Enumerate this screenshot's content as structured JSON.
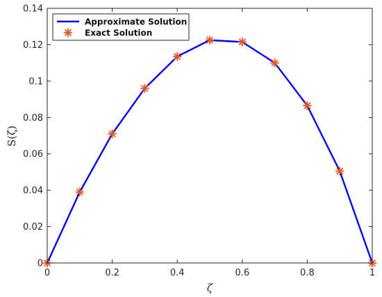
{
  "chart_data": {
    "type": "line",
    "title": "",
    "xlabel": "ζ",
    "ylabel": "S(ζ)",
    "xlim": [
      0,
      1
    ],
    "ylim": [
      0,
      0.14
    ],
    "xticks": [
      "0",
      "0.2",
      "0.4",
      "0.6",
      "0.8",
      "1"
    ],
    "yticks": [
      "0",
      "0.02",
      "0.04",
      "0.06",
      "0.08",
      "0.1",
      "0.12",
      "0.14"
    ],
    "grid": false,
    "legend_position": "top-left",
    "series": [
      {
        "name": "Approximate Solution",
        "style": "line",
        "color": "#0000ff",
        "x": [
          0,
          0.1,
          0.2,
          0.3,
          0.4,
          0.5,
          0.6,
          0.7,
          0.8,
          0.9,
          1.0
        ],
        "y": [
          0,
          0.039,
          0.071,
          0.096,
          0.1135,
          0.1225,
          0.1215,
          0.11,
          0.0865,
          0.0505,
          0
        ]
      },
      {
        "name": "Exact Solution",
        "style": "markers",
        "marker": "asterisk",
        "color": "#e8541e",
        "x": [
          0,
          0.1,
          0.2,
          0.3,
          0.4,
          0.5,
          0.6,
          0.7,
          0.8,
          0.9,
          1.0
        ],
        "y": [
          0,
          0.039,
          0.071,
          0.096,
          0.1135,
          0.1225,
          0.1215,
          0.11,
          0.0865,
          0.0505,
          0
        ]
      }
    ]
  }
}
